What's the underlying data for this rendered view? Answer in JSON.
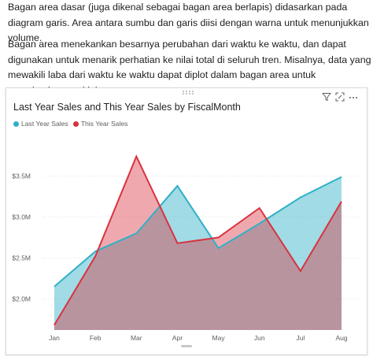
{
  "doc": {
    "paragraph1": "Bagan area dasar (juga dikenal sebagai bagan area berlapis) didasarkan pada diagram garis. Area antara sumbu dan garis diisi dengan warna untuk menunjukkan volume.",
    "paragraph2": "Bagan area menekankan besarnya perubahan dari waktu ke waktu, dan dapat digunakan untuk menarik perhatian ke nilai total di seluruh tren. Misalnya, data yang mewakili laba dari waktu ke waktu dapat diplot dalam bagan area untuk menekankan total laba."
  },
  "visual": {
    "toolbar_icons": [
      "filter-icon",
      "focus-mode-icon",
      "more-options-icon"
    ]
  },
  "chart_data": {
    "type": "area",
    "title": "Last Year Sales and This Year Sales by FiscalMonth",
    "categories": [
      "Jan",
      "Feb",
      "Mar",
      "Apr",
      "May",
      "Jun",
      "Jul",
      "Aug"
    ],
    "series": [
      {
        "name": "Last Year Sales",
        "color": "#2fb0c6",
        "values": [
          2.15,
          2.58,
          2.8,
          3.38,
          2.62,
          2.92,
          3.24,
          3.49
        ]
      },
      {
        "name": "This Year Sales",
        "color": "#d9323f",
        "values": [
          1.68,
          2.52,
          3.74,
          2.68,
          2.75,
          3.11,
          2.34,
          3.19
        ]
      }
    ],
    "yticks": [
      2.0,
      2.5,
      3.0,
      3.5
    ],
    "ytick_labels": [
      "$2.0M",
      "$2.5M",
      "$3.0M",
      "$3.5M"
    ],
    "ylim": [
      1.62,
      3.9
    ],
    "xlabel": "",
    "ylabel": "",
    "grid": true,
    "legend_position": "top-left"
  }
}
